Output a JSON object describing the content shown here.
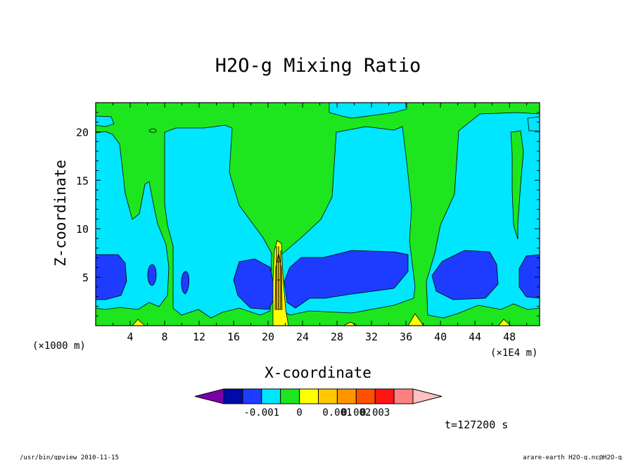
{
  "chart_data": {
    "type": "heatmap",
    "title": "H2O-g Mixing Ratio",
    "xlabel": "X-coordinate",
    "ylabel": "Z-coordinate",
    "x_unit_left": "(×1000 m)",
    "x_unit_right": "(×1E4 m)",
    "xlim": [
      0,
      51.5
    ],
    "ylim": [
      0,
      23
    ],
    "x_ticks": [
      "4",
      "8",
      "12",
      "16",
      "20",
      "24",
      "28",
      "32",
      "36",
      "40",
      "44",
      "48"
    ],
    "x_tick_values": [
      4,
      8,
      12,
      16,
      20,
      24,
      28,
      32,
      36,
      40,
      44,
      48
    ],
    "y_ticks": [
      "5",
      "10",
      "15",
      "20"
    ],
    "y_tick_values": [
      5,
      10,
      15,
      20
    ],
    "colorbar": {
      "colors": [
        "#7a00a8",
        "#000aa8",
        "#1e3cff",
        "#00e6ff",
        "#1ee61e",
        "#ffff00",
        "#ffc800",
        "#ff9600",
        "#ff5000",
        "#ff1414",
        "#ff8080",
        "#ffc0c0"
      ],
      "tick_labels": [
        "-0.001",
        "0",
        "0.001",
        "0.002",
        "0.003"
      ]
    },
    "regions": [
      {
        "name": "green-background",
        "level": "green"
      },
      {
        "name": "cyan-left-column",
        "level": "cyan"
      },
      {
        "name": "cyan-center-right-column",
        "level": "cyan"
      },
      {
        "name": "cyan-right-column",
        "level": "cyan"
      },
      {
        "name": "blue-core-left",
        "level": "blue"
      },
      {
        "name": "blue-core-center",
        "level": "blue"
      },
      {
        "name": "blue-core-right",
        "level": "blue"
      },
      {
        "name": "yellow-plume",
        "level": "yellow"
      }
    ],
    "time_label": "t=127200 s"
  },
  "footer": {
    "left": "/usr/bin/gpview   2010-11-15",
    "right": "arare-earth_H2O-g.nc@H2O-g"
  }
}
